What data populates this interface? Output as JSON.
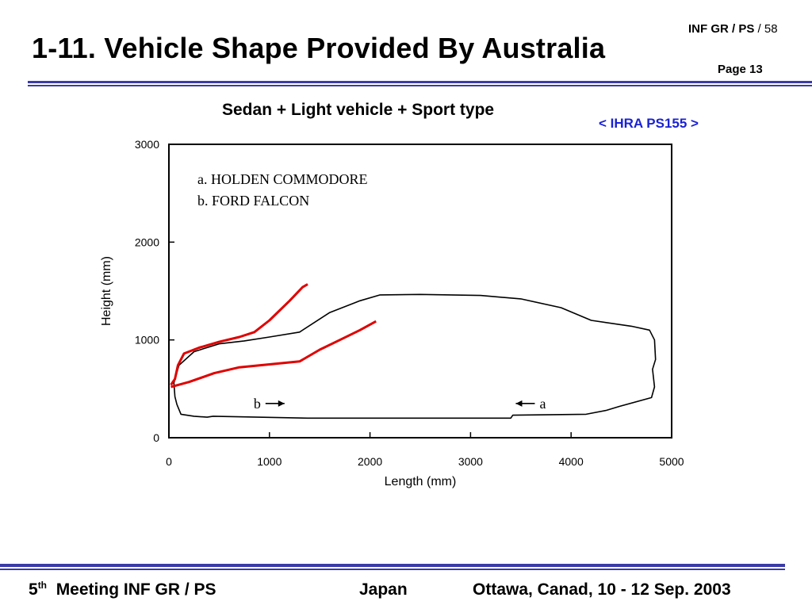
{
  "slide": {
    "title": "1-11. Vehicle Shape Provided By Australia",
    "doc_ref": "INF GR / PS",
    "doc_total": "/ 58",
    "page": "Page 13",
    "source": "< IHRA PS155 >",
    "rule_color": "#3b3ba8"
  },
  "footer": {
    "meeting_num": "5",
    "meeting_sup": "th",
    "meeting_text": "Meeting INF GR / PS",
    "country": "Japan",
    "venue": "Ottawa, Canad, 10 - 12 Sep. 2003"
  },
  "chart_data": {
    "type": "line",
    "title": "Sedan + Light vehicle + Sport type",
    "xlabel": "Length (mm)",
    "ylabel": "Height (mm)",
    "xlim": [
      0,
      5000
    ],
    "ylim": [
      0,
      3000
    ],
    "xticks": [
      0,
      1000,
      2000,
      3000,
      4000,
      5000
    ],
    "yticks": [
      0,
      1000,
      2000,
      3000
    ],
    "grid": false,
    "legend_entries": [
      "a. HOLDEN COMMODORE",
      "b. FORD FALCON"
    ],
    "annotations": [
      {
        "label": "b",
        "x": 1150,
        "y": 350,
        "direction": "right"
      },
      {
        "label": "a",
        "x": 3450,
        "y": 350,
        "direction": "left"
      }
    ],
    "series": [
      {
        "name": "car outline",
        "color": "#000000",
        "role": "vehicle profile",
        "points": [
          [
            80,
            340
          ],
          [
            120,
            240
          ],
          [
            250,
            220
          ],
          [
            380,
            210
          ],
          [
            440,
            220
          ],
          [
            1380,
            200
          ],
          [
            3400,
            200
          ],
          [
            3420,
            230
          ],
          [
            4150,
            240
          ],
          [
            4350,
            280
          ],
          [
            4480,
            320
          ],
          [
            4800,
            410
          ],
          [
            4830,
            520
          ],
          [
            4810,
            700
          ],
          [
            4840,
            800
          ],
          [
            4830,
            1000
          ],
          [
            4780,
            1100
          ],
          [
            4600,
            1140
          ],
          [
            4200,
            1200
          ],
          [
            3900,
            1330
          ],
          [
            3500,
            1420
          ],
          [
            3100,
            1455
          ],
          [
            2500,
            1465
          ],
          [
            2100,
            1460
          ],
          [
            1900,
            1400
          ],
          [
            1600,
            1280
          ],
          [
            1300,
            1080
          ],
          [
            1000,
            1030
          ],
          [
            750,
            990
          ],
          [
            500,
            960
          ],
          [
            250,
            880
          ],
          [
            100,
            740
          ],
          [
            50,
            560
          ],
          [
            60,
            420
          ],
          [
            80,
            340
          ]
        ]
      },
      {
        "name": "a",
        "color": "#e00000",
        "role": "WAD line Holden Commodore",
        "points": [
          [
            20,
            540
          ],
          [
            60,
            600
          ],
          [
            90,
            740
          ],
          [
            150,
            860
          ],
          [
            300,
            920
          ],
          [
            500,
            980
          ],
          [
            700,
            1030
          ],
          [
            850,
            1080
          ],
          [
            1000,
            1200
          ],
          [
            1200,
            1400
          ],
          [
            1330,
            1540
          ],
          [
            1380,
            1570
          ]
        ]
      },
      {
        "name": "b",
        "color": "#e00000",
        "role": "WAD line Ford Falcon",
        "points": [
          [
            20,
            520
          ],
          [
            200,
            570
          ],
          [
            450,
            660
          ],
          [
            700,
            720
          ],
          [
            900,
            740
          ],
          [
            1300,
            780
          ],
          [
            1500,
            900
          ],
          [
            1700,
            1000
          ],
          [
            1900,
            1100
          ],
          [
            2060,
            1190
          ]
        ]
      }
    ]
  }
}
